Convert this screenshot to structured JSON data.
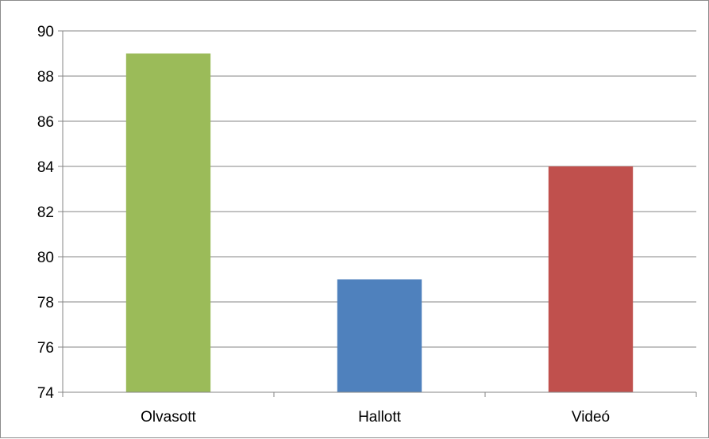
{
  "chart_data": {
    "type": "bar",
    "categories": [
      "Olvasott",
      "Hallott",
      "Videó"
    ],
    "values": [
      89,
      79,
      84
    ],
    "colors": [
      "#9bbb59",
      "#4f81bd",
      "#c0504d"
    ],
    "ylim": [
      74,
      90
    ],
    "yticks": [
      74,
      76,
      78,
      80,
      82,
      84,
      86,
      88,
      90
    ],
    "grid": true,
    "legend": "none",
    "title": "",
    "xlabel": "",
    "ylabel": ""
  }
}
